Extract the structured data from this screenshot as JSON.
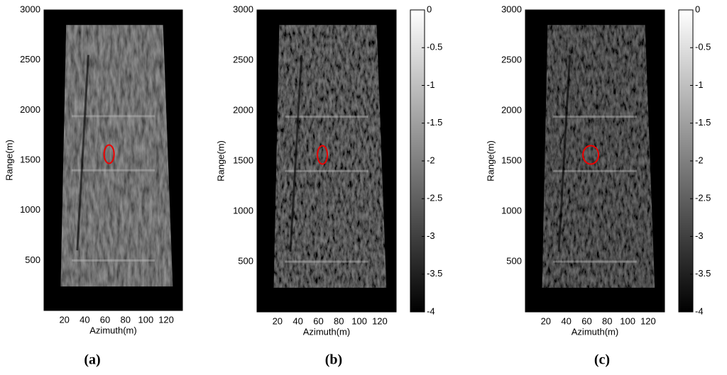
{
  "chart_data": [
    {
      "type": "image",
      "xlabel": "Azimuth(m)",
      "ylabel": "Range(m)",
      "caption": "(a)",
      "xlim": [
        0,
        136
      ],
      "xticks": [
        20,
        40,
        60,
        80,
        100,
        120
      ],
      "ylim": [
        0,
        3000
      ],
      "yticks": [
        500,
        1000,
        1500,
        2000,
        2500,
        3000
      ]
    },
    {
      "type": "image",
      "xlabel": "Azimuth(m)",
      "ylabel": "Range(m)",
      "caption": "(b)",
      "xlim": [
        0,
        136
      ],
      "xticks": [
        20,
        40,
        60,
        80,
        100,
        120
      ],
      "ylim": [
        0,
        3000
      ],
      "yticks": [
        500,
        1000,
        1500,
        2000,
        2500,
        3000
      ],
      "clim": [
        -4,
        0
      ],
      "cticks": [
        0,
        -0.5,
        -1,
        -1.5,
        -2,
        -2.5,
        -3,
        -3.5,
        -4
      ]
    },
    {
      "type": "image",
      "xlabel": "Azimuth(m)",
      "ylabel": "Range(m)",
      "caption": "(c)",
      "xlim": [
        0,
        136
      ],
      "xticks": [
        20,
        40,
        60,
        80,
        100,
        120
      ],
      "ylim": [
        0,
        3000
      ],
      "yticks": [
        500,
        1000,
        1500,
        2000,
        2500,
        3000
      ],
      "clim": [
        -4,
        0
      ],
      "cticks": [
        0,
        -0.5,
        -1,
        -1.5,
        -2,
        -2.5,
        -3,
        -3.5,
        -4
      ]
    }
  ]
}
